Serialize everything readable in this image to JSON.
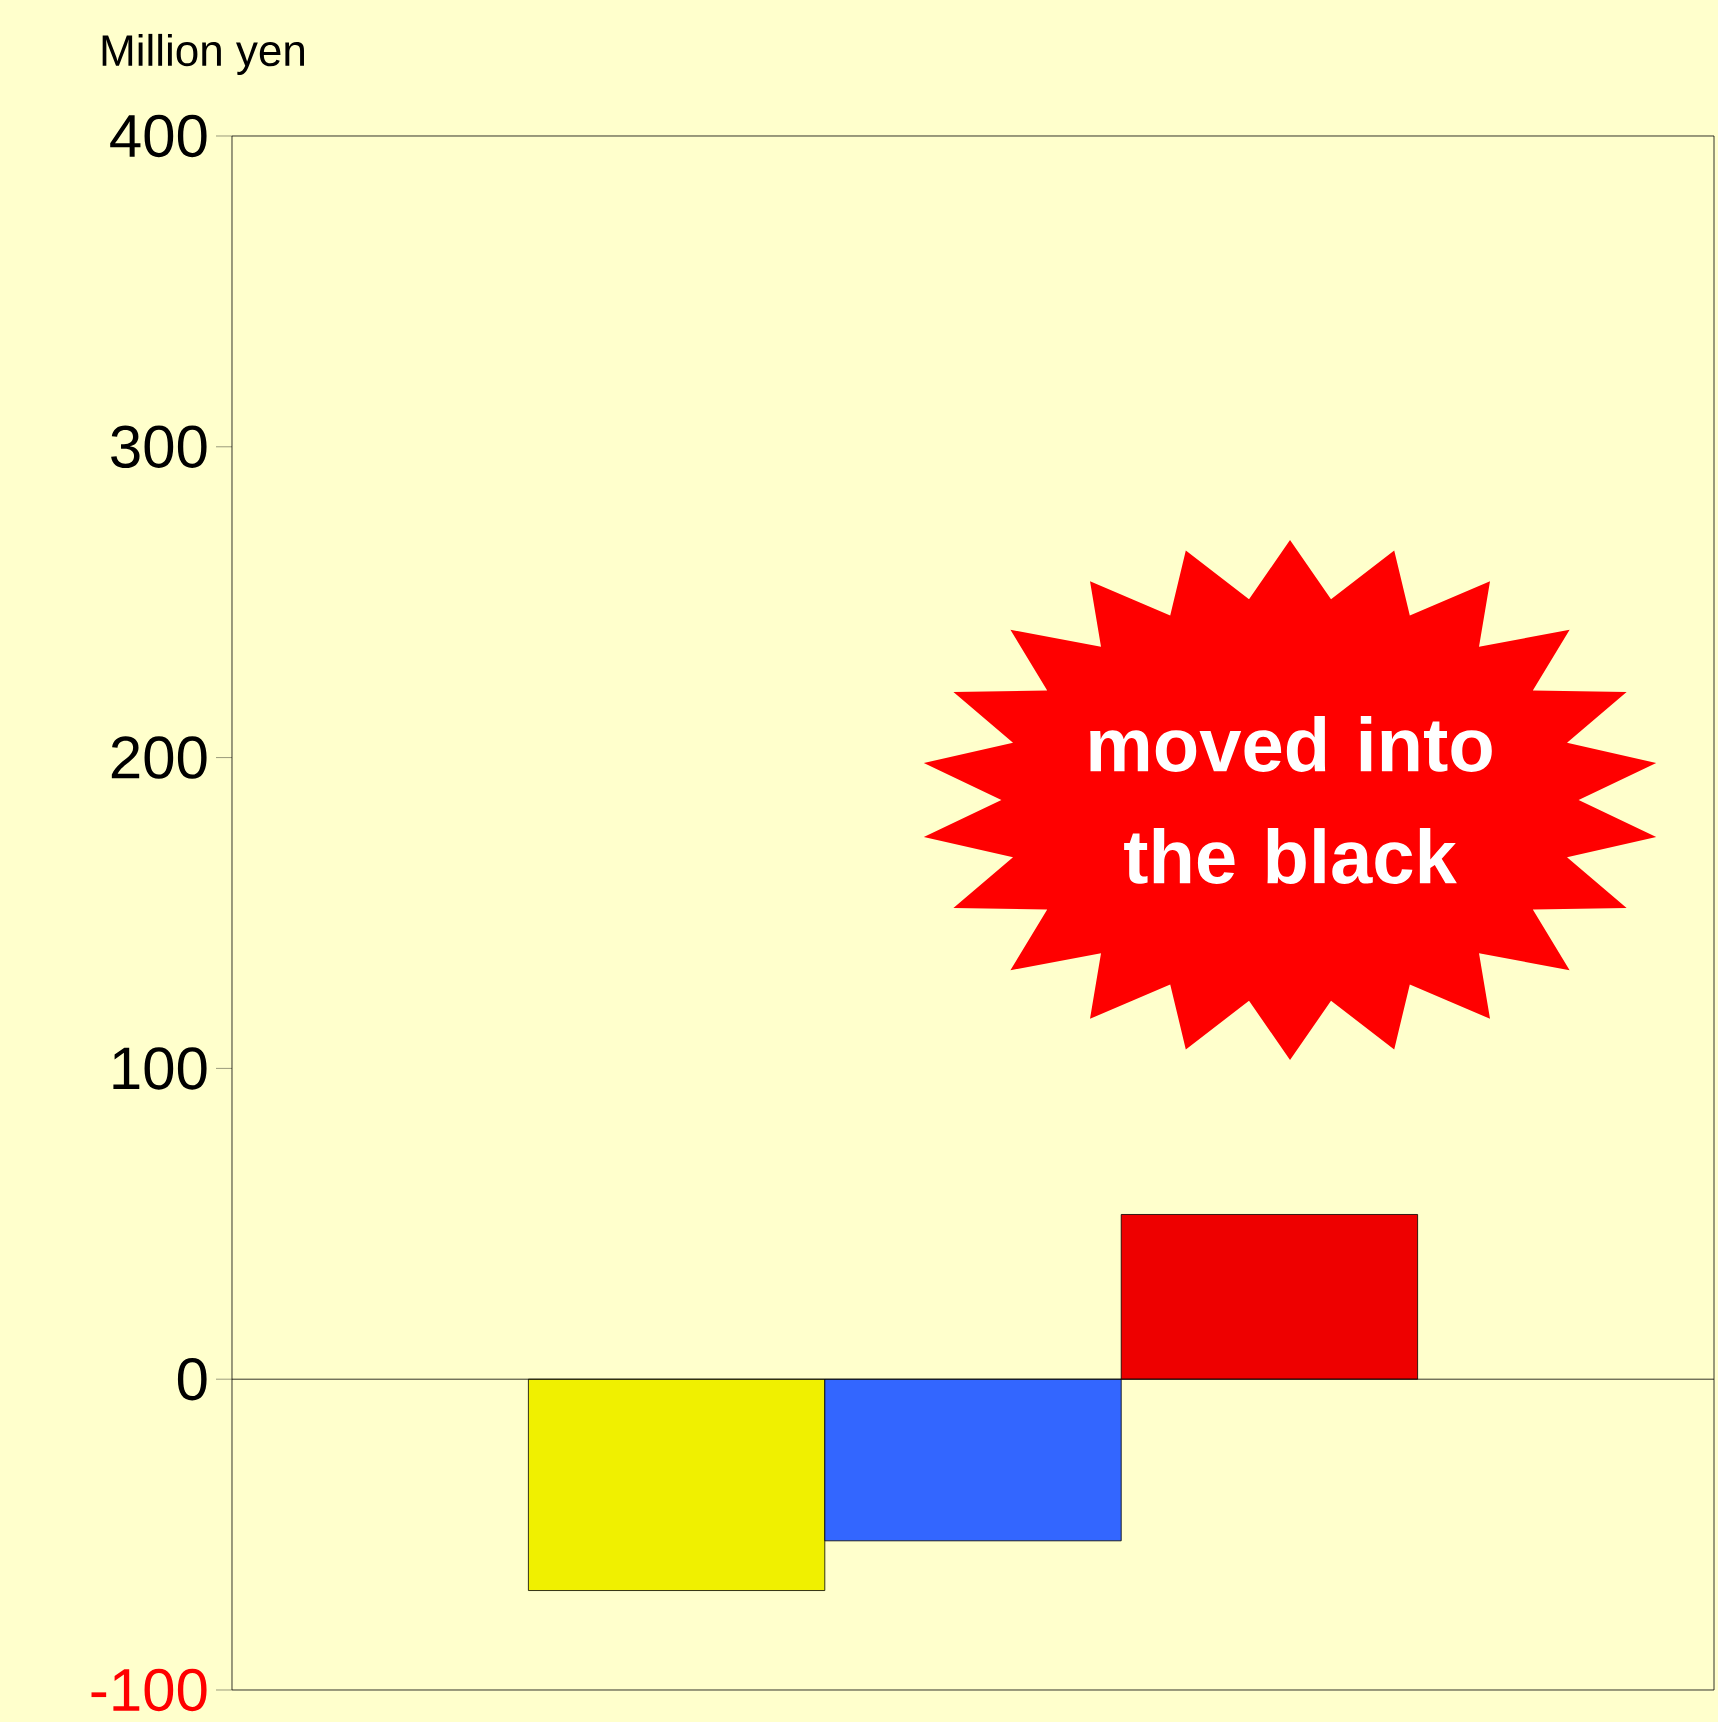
{
  "chart_data": {
    "type": "bar",
    "ylabel": "Million yen",
    "categories": [
      null,
      null,
      null
    ],
    "values": [
      -68,
      -52,
      53
    ],
    "colors": [
      "#f0f000",
      "#3366ff",
      "#ee0000"
    ],
    "ylim": [
      -100,
      400
    ],
    "yticks": [
      -100,
      0,
      100,
      200,
      300,
      400
    ],
    "annotations": [
      "moved into the black"
    ]
  }
}
